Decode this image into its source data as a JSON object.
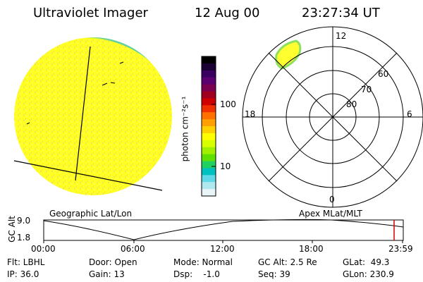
{
  "header": {
    "instrument": "Ultraviolet Imager",
    "date": "12 Aug 00",
    "time": "23:27:34 UT"
  },
  "colorbar": {
    "label": "photon cm⁻²s⁻¹",
    "ticks": [
      "100",
      "10"
    ],
    "colors": [
      "#000000",
      "#1a0033",
      "#3a0060",
      "#5a0070",
      "#7a0050",
      "#a00020",
      "#d00000",
      "#f03000",
      "#ff7000",
      "#ffa000",
      "#ffd000",
      "#ffff00",
      "#d8ff00",
      "#a0f000",
      "#60e000",
      "#20d060",
      "#00c0c0",
      "#60d8e8",
      "#b0e8f0",
      "#e8f4f8"
    ]
  },
  "polar": {
    "mlt_labels": {
      "top": "12",
      "left": "18",
      "right": "6",
      "bottom": "0"
    },
    "lat_labels": [
      "60",
      "70",
      "80"
    ]
  },
  "plot_labels": {
    "geo": "Geographic Lat/Lon",
    "apex": "Apex MLat/MLT"
  },
  "timeline": {
    "ylabel": "GC Alt",
    "ymax": "9.0",
    "ymin": "1.8",
    "xticks": [
      "00:00",
      "06:00",
      "12:00",
      "18:00",
      "23:59"
    ]
  },
  "footer": {
    "filter": "Flt: LBHL",
    "ip": "IP: 36.0",
    "door": "Door: Open",
    "gain": "Gain: 13",
    "mode": "Mode: Normal",
    "dsp": "Dsp:    -1.0",
    "gcalt": "GC Alt: 2.5 Re",
    "seq": "Seq: 39",
    "glat": "GLat:  49.3",
    "glon": "GLon: 230.9"
  }
}
